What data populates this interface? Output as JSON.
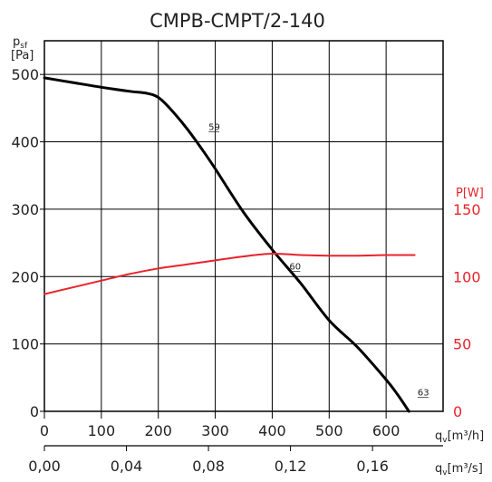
{
  "chart_data": {
    "type": "line",
    "title": "CMPB-CMPT/2-140",
    "y_left": {
      "label": "p",
      "label_sub": "sf",
      "unit": "[Pa]",
      "ticks": [
        "0",
        "100",
        "200",
        "300",
        "400",
        "500"
      ],
      "range": [
        0,
        550
      ]
    },
    "y_right": {
      "label": "P",
      "unit": "[W]",
      "ticks": [
        "0",
        "50",
        "100",
        "150"
      ],
      "range": [
        0,
        275
      ],
      "color": "#e8232b"
    },
    "x_primary": {
      "label": "q",
      "label_sub": "v",
      "unit": "[m³/h]",
      "ticks": [
        "0",
        "100",
        "200",
        "300",
        "400",
        "500",
        "600"
      ],
      "range": [
        0,
        700
      ]
    },
    "x_secondary": {
      "label": "q",
      "label_sub": "v",
      "unit": "[m³/s]",
      "ticks": [
        "0,00",
        "0,04",
        "0,08",
        "0,12",
        "0,16"
      ],
      "range": [
        0,
        0.1944
      ]
    },
    "grid": true,
    "series": [
      {
        "axis": "left",
        "color": "#000000",
        "x": [
          0,
          50,
          100,
          150,
          180,
          200,
          220,
          250,
          280,
          300,
          350,
          400,
          450,
          500,
          550,
          600,
          620,
          640
        ],
        "y": [
          495,
          488,
          481,
          475,
          472,
          466,
          450,
          420,
          385,
          360,
          295,
          240,
          190,
          135,
          95,
          47,
          25,
          0
        ]
      },
      {
        "axis": "right",
        "color": "#e8232b",
        "x": [
          0,
          50,
          100,
          150,
          200,
          250,
          300,
          350,
          400,
          450,
          500,
          550,
          600,
          650
        ],
        "y": [
          87,
          92,
          97,
          102,
          106,
          109,
          112,
          115,
          117,
          116,
          115.5,
          115.5,
          116,
          116
        ]
      }
    ],
    "annotations": [
      {
        "text": "59",
        "x": 285,
        "y": 412
      },
      {
        "text": "60",
        "x": 427,
        "y": 205
      },
      {
        "text": "63",
        "x": 652,
        "y": 18
      }
    ]
  }
}
